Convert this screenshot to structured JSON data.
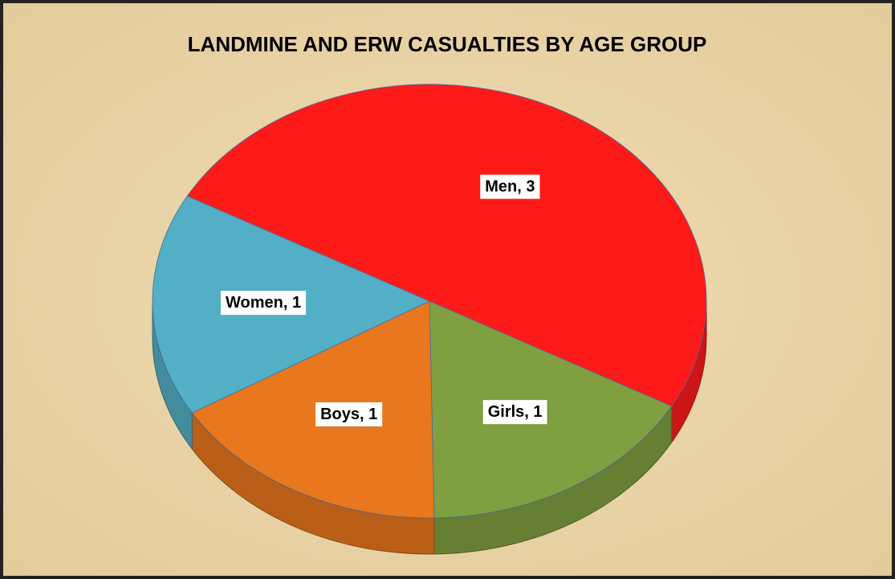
{
  "chart_data": {
    "type": "pie",
    "title": "LANDMINE AND ERW CASUALTIES BY AGE GROUP",
    "categories": [
      "Men",
      "Girls",
      "Boys",
      "Women"
    ],
    "values": [
      3,
      1,
      1,
      1
    ],
    "value_labels": [
      "Men, 3",
      "Girls, 1",
      "Boys, 1",
      "Women, 1"
    ],
    "colors": [
      "#ff1a1a",
      "#809f40",
      "#e8771e",
      "#52afc5"
    ]
  }
}
